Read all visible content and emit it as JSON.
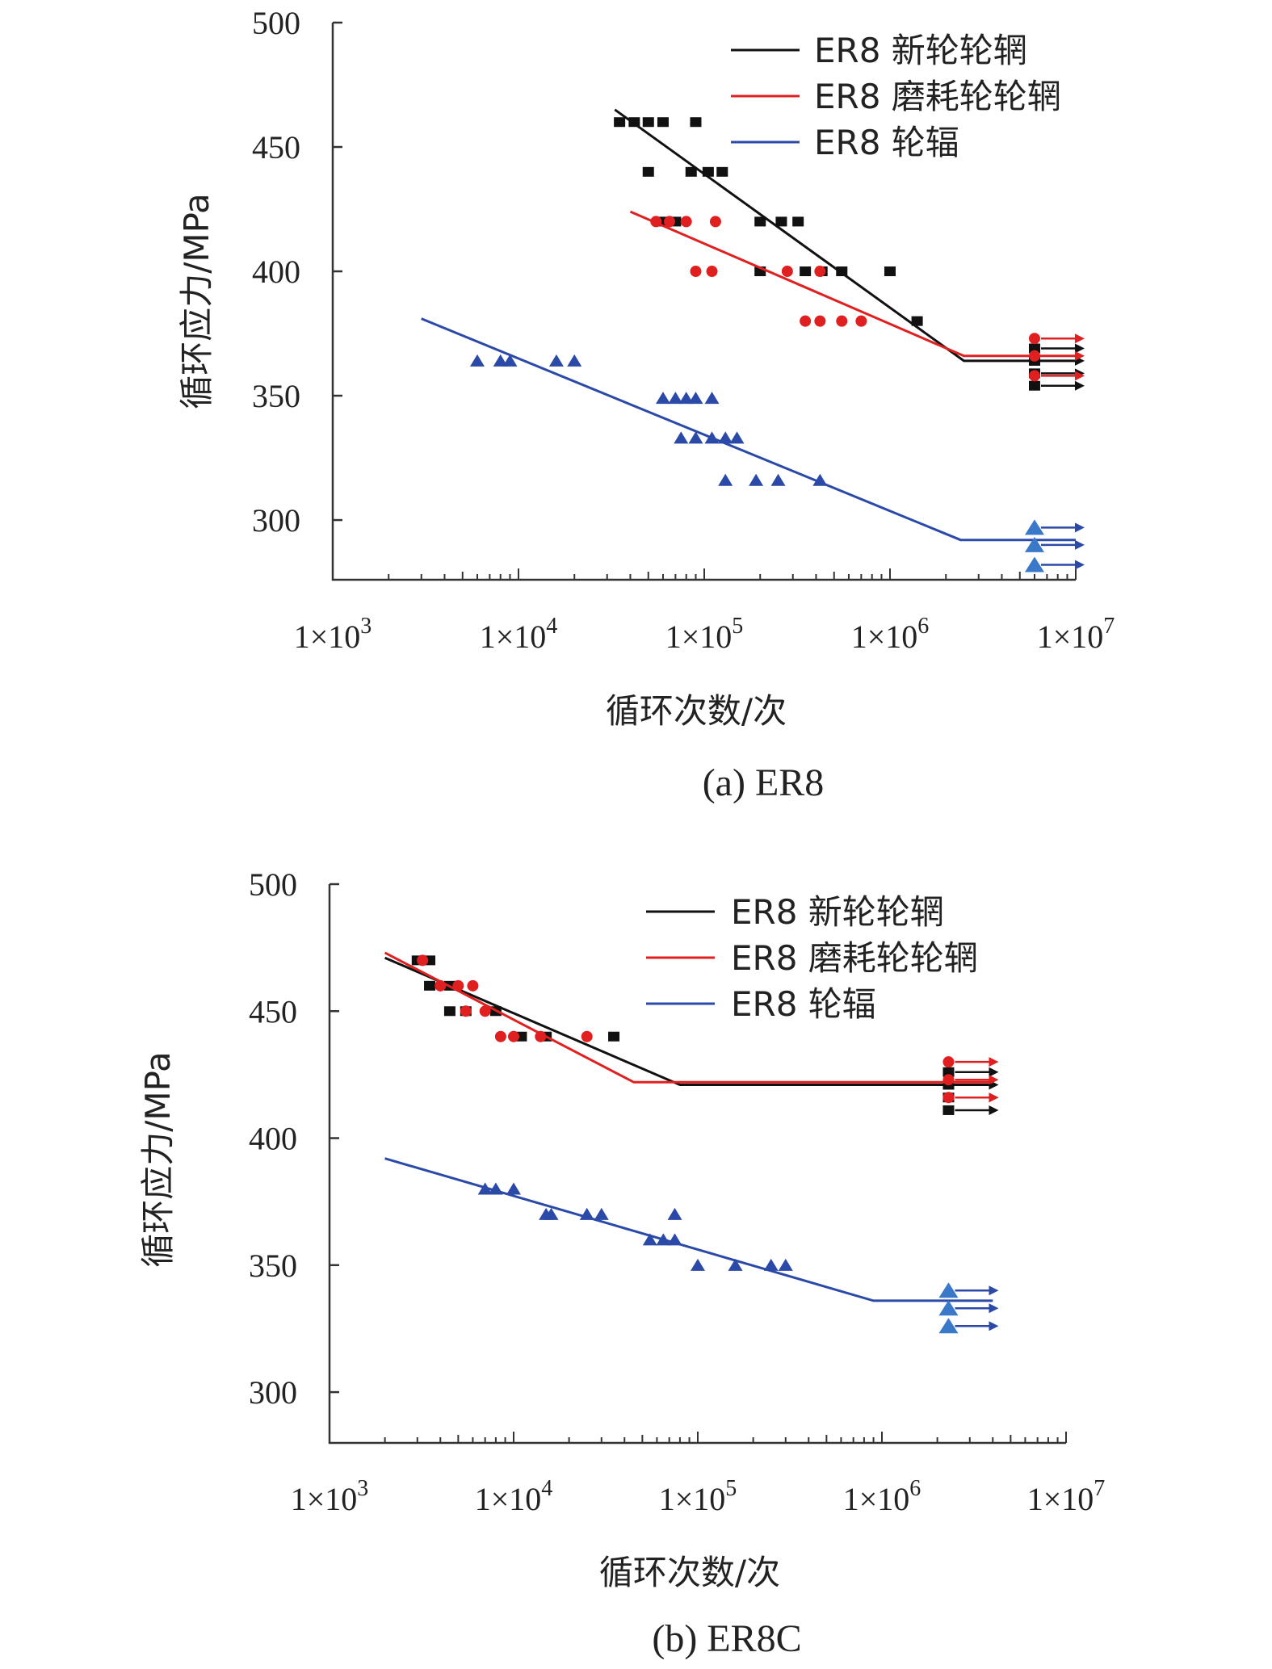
{
  "chart_data": [
    {
      "type": "scatter",
      "caption": "(a) ER8",
      "xlabel": "循环次数/次",
      "ylabel": "循环应力/MPa",
      "x_scale": "log",
      "xlim": [
        1000,
        10000000
      ],
      "ylim": [
        276,
        500
      ],
      "x_ticks": [
        1000,
        10000,
        100000,
        1000000,
        10000000
      ],
      "x_tick_labels": [
        {
          "base": "1×10",
          "exp": "3"
        },
        {
          "base": "1×10",
          "exp": "4"
        },
        {
          "base": "1×10",
          "exp": "5"
        },
        {
          "base": "1×10",
          "exp": "6"
        },
        {
          "base": "1×10",
          "exp": "7"
        }
      ],
      "y_ticks": [
        300,
        350,
        400,
        450,
        500
      ],
      "grid": false,
      "legend_position": "top-right",
      "series": [
        {
          "name": "ER8 新轮轮辋",
          "color": "#111111",
          "marker": "square",
          "fit_line": [
            [
              33000,
              465
            ],
            [
              2500000,
              364
            ],
            [
              10000000,
              364
            ]
          ],
          "points": [
            [
              35000,
              460
            ],
            [
              42000,
              460
            ],
            [
              50000,
              460
            ],
            [
              60000,
              460
            ],
            [
              90000,
              460
            ],
            [
              50000,
              440
            ],
            [
              85000,
              440
            ],
            [
              105000,
              440
            ],
            [
              125000,
              440
            ],
            [
              60000,
              420
            ],
            [
              70000,
              420
            ],
            [
              200000,
              420
            ],
            [
              260000,
              420
            ],
            [
              320000,
              420
            ],
            [
              200000,
              400
            ],
            [
              350000,
              400
            ],
            [
              430000,
              400
            ],
            [
              550000,
              400
            ],
            [
              1000000,
              400
            ],
            [
              1400000,
              380
            ]
          ],
          "runouts": [
            [
              6000000,
              369
            ],
            [
              6000000,
              364
            ],
            [
              6000000,
              359
            ],
            [
              6000000,
              354
            ]
          ]
        },
        {
          "name": "ER8 磨耗轮轮辋",
          "color": "#e02020",
          "marker": "circle",
          "fit_line": [
            [
              40000,
              424
            ],
            [
              2500000,
              366
            ],
            [
              10000000,
              366
            ]
          ],
          "points": [
            [
              55000,
              420
            ],
            [
              65000,
              420
            ],
            [
              80000,
              420
            ],
            [
              115000,
              420
            ],
            [
              90000,
              400
            ],
            [
              110000,
              400
            ],
            [
              280000,
              400
            ],
            [
              420000,
              400
            ],
            [
              350000,
              380
            ],
            [
              420000,
              380
            ],
            [
              550000,
              380
            ],
            [
              700000,
              380
            ]
          ],
          "runouts": [
            [
              6000000,
              373
            ],
            [
              6000000,
              366
            ],
            [
              6000000,
              358
            ]
          ]
        },
        {
          "name": "ER8 轮辐",
          "color": "#2b4aa8",
          "marker": "triangle",
          "fit_line": [
            [
              3000,
              381
            ],
            [
              2400000,
              292
            ],
            [
              10000000,
              292
            ]
          ],
          "points": [
            [
              6000,
              364
            ],
            [
              8000,
              364
            ],
            [
              9000,
              364
            ],
            [
              16000,
              364
            ],
            [
              20000,
              364
            ],
            [
              60000,
              349
            ],
            [
              70000,
              349
            ],
            [
              80000,
              349
            ],
            [
              90000,
              349
            ],
            [
              110000,
              349
            ],
            [
              75000,
              333
            ],
            [
              90000,
              333
            ],
            [
              110000,
              333
            ],
            [
              130000,
              333
            ],
            [
              150000,
              333
            ],
            [
              130000,
              316
            ],
            [
              190000,
              316
            ],
            [
              250000,
              316
            ],
            [
              420000,
              316
            ]
          ],
          "runouts": [
            [
              6000000,
              297
            ],
            [
              6000000,
              290
            ],
            [
              6000000,
              282
            ]
          ]
        }
      ]
    },
    {
      "type": "scatter",
      "caption": "(b) ER8C",
      "xlabel": "循环次数/次",
      "ylabel": "循环应力/MPa",
      "x_scale": "log",
      "xlim": [
        1000,
        10000000
      ],
      "ylim": [
        280,
        500
      ],
      "x_ticks": [
        1000,
        10000,
        100000,
        1000000,
        10000000
      ],
      "x_tick_labels": [
        {
          "base": "1×10",
          "exp": "3"
        },
        {
          "base": "1×10",
          "exp": "4"
        },
        {
          "base": "1×10",
          "exp": "5"
        },
        {
          "base": "1×10",
          "exp": "6"
        },
        {
          "base": "1×10",
          "exp": "7"
        }
      ],
      "y_ticks": [
        300,
        350,
        400,
        450,
        500
      ],
      "grid": false,
      "legend_position": "top-right",
      "series": [
        {
          "name": "ER8 新轮轮辋",
          "color": "#111111",
          "marker": "square",
          "fit_line": [
            [
              2000,
              471
            ],
            [
              80000,
              421
            ],
            [
              4000000,
              421
            ]
          ],
          "points": [
            [
              3000,
              470
            ],
            [
              3500,
              470
            ],
            [
              3500,
              460
            ],
            [
              4500,
              460
            ],
            [
              4500,
              450
            ],
            [
              5500,
              450
            ],
            [
              8000,
              450
            ],
            [
              11000,
              440
            ],
            [
              15000,
              440
            ],
            [
              35000,
              440
            ]
          ],
          "runouts": [
            [
              2300000,
              426
            ],
            [
              2300000,
              421
            ],
            [
              2300000,
              416
            ],
            [
              2300000,
              411
            ]
          ]
        },
        {
          "name": "ER8 磨耗轮轮辋",
          "color": "#e02020",
          "marker": "circle",
          "fit_line": [
            [
              2000,
              473
            ],
            [
              45000,
              422
            ],
            [
              4000000,
              422
            ]
          ],
          "points": [
            [
              3200,
              470
            ],
            [
              4000,
              460
            ],
            [
              5000,
              460
            ],
            [
              6000,
              460
            ],
            [
              5500,
              450
            ],
            [
              7000,
              450
            ],
            [
              8500,
              440
            ],
            [
              10000,
              440
            ],
            [
              14000,
              440
            ],
            [
              25000,
              440
            ]
          ],
          "runouts": [
            [
              2300000,
              430
            ],
            [
              2300000,
              423
            ],
            [
              2300000,
              416
            ]
          ]
        },
        {
          "name": "ER8 轮辐",
          "color": "#2b4aa8",
          "marker": "triangle",
          "fit_line": [
            [
              2000,
              392
            ],
            [
              900000,
              336
            ],
            [
              4000000,
              336
            ]
          ],
          "points": [
            [
              7000,
              380
            ],
            [
              8000,
              380
            ],
            [
              10000,
              380
            ],
            [
              15000,
              370
            ],
            [
              16000,
              370
            ],
            [
              25000,
              370
            ],
            [
              30000,
              370
            ],
            [
              55000,
              360
            ],
            [
              65000,
              360
            ],
            [
              75000,
              360
            ],
            [
              75000,
              370
            ],
            [
              100000,
              350
            ],
            [
              160000,
              350
            ],
            [
              250000,
              350
            ],
            [
              300000,
              350
            ]
          ],
          "runouts": [
            [
              2300000,
              340
            ],
            [
              2300000,
              333
            ],
            [
              2300000,
              326
            ]
          ]
        }
      ]
    }
  ]
}
